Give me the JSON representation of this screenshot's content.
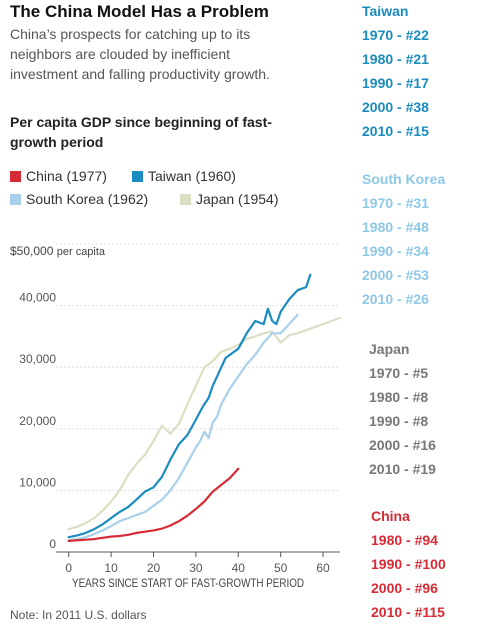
{
  "header": {
    "title": "The China Model Has a Problem",
    "subtitle_lines": [
      "China’s prospects for catching up to its",
      "neighbors are clouded by inefficient",
      "investment and falling productivity growth."
    ]
  },
  "chart_data": {
    "type": "line",
    "title_lines": [
      "Per capita GDP since beginning of fast-",
      "growth period"
    ],
    "xlabel": "YEARS SINCE START OF FAST-GROWTH PERIOD",
    "ylabel_value": "$50,000",
    "ylabel_unit": "per capita",
    "xlim": [
      -3,
      64
    ],
    "ylim": [
      0,
      50000
    ],
    "x_ticks": [
      0,
      10,
      20,
      30,
      40,
      50,
      60
    ],
    "y_tick_labels": [
      "0",
      "10,000",
      "20,000",
      "30,000",
      "40,000"
    ],
    "y_ticks": [
      0,
      10000,
      20000,
      30000,
      40000
    ],
    "grid": true,
    "legend": {
      "placement": "top-left"
    },
    "series": [
      {
        "name": "China (1977)",
        "color": "#d62b34",
        "x": [
          0,
          2,
          4,
          6,
          8,
          10,
          12,
          14,
          16,
          18,
          20,
          22,
          24,
          26,
          28,
          30,
          32,
          34,
          36,
          38,
          40
        ],
        "y": [
          1800,
          1900,
          2000,
          2100,
          2300,
          2500,
          2600,
          2800,
          3100,
          3300,
          3500,
          3800,
          4300,
          5000,
          5900,
          7000,
          8200,
          9800,
          10900,
          12000,
          13500
        ]
      },
      {
        "name": "Taiwan (1960)",
        "color": "#1a8cc0",
        "x": [
          0,
          2,
          4,
          6,
          8,
          10,
          12,
          14,
          16,
          18,
          20,
          22,
          24,
          26,
          28,
          30,
          31,
          32,
          33,
          34,
          35,
          36,
          37,
          38,
          40,
          42,
          44,
          46,
          47,
          48,
          49,
          50,
          52,
          54,
          56,
          57
        ],
        "y": [
          2400,
          2700,
          3100,
          3700,
          4500,
          5500,
          6500,
          7300,
          8500,
          9800,
          10500,
          12200,
          15000,
          17500,
          19000,
          21500,
          22800,
          24000,
          25000,
          27000,
          28500,
          30000,
          31500,
          32000,
          33000,
          35500,
          37500,
          37000,
          39500,
          37500,
          37000,
          39000,
          41000,
          42500,
          43000,
          45000
        ]
      },
      {
        "name": "South Korea (1962)",
        "color": "#a9d0ea",
        "x": [
          0,
          2,
          4,
          6,
          8,
          10,
          12,
          14,
          16,
          18,
          20,
          22,
          24,
          26,
          28,
          30,
          31,
          32,
          33,
          34,
          35,
          36,
          38,
          40,
          42,
          44,
          46,
          48,
          50,
          52,
          54
        ],
        "y": [
          1900,
          2100,
          2400,
          2900,
          3500,
          4200,
          5000,
          5500,
          6000,
          6500,
          7500,
          8500,
          10000,
          12000,
          14500,
          17000,
          18000,
          19500,
          18500,
          21000,
          22000,
          24000,
          26500,
          28500,
          30500,
          32000,
          34000,
          35500,
          35500,
          37000,
          38500
        ]
      },
      {
        "name": "Japan (1954)",
        "color": "#dcdfc4",
        "x": [
          0,
          2,
          4,
          6,
          8,
          10,
          12,
          14,
          16,
          18,
          20,
          22,
          24,
          26,
          28,
          30,
          32,
          34,
          36,
          38,
          40,
          42,
          44,
          46,
          48,
          50,
          52,
          54,
          56,
          58,
          60,
          62,
          64
        ],
        "y": [
          3700,
          4100,
          4700,
          5500,
          6700,
          8200,
          10000,
          12500,
          14300,
          15800,
          18000,
          20500,
          19200,
          20800,
          24000,
          27000,
          30000,
          31000,
          32500,
          33000,
          33600,
          34600,
          35000,
          35500,
          35800,
          34000,
          35200,
          35500,
          36000,
          36500,
          37000,
          37500,
          38000
        ]
      }
    ]
  },
  "rankings": [
    {
      "key": "taiwan",
      "name": "Taiwan",
      "color": "#1a8cc0",
      "rows": [
        "1970 - #22",
        "1980 - #21",
        "1990 - #17",
        "2000 - #38",
        "2010 - #15"
      ]
    },
    {
      "key": "korea",
      "name": "South Korea",
      "color": "#8fc8e6",
      "rows": [
        "1970 - #31",
        "1980 - #48",
        "1990 - #34",
        "2000 - #53",
        "2010 - #26"
      ]
    },
    {
      "key": "japan",
      "name": "Japan",
      "color": "#777777",
      "rows": [
        "1970 - #5",
        "1980 - #8",
        "1990 - #8",
        "2000 - #16",
        "2010 - #19"
      ]
    },
    {
      "key": "china",
      "name": "China",
      "color": "#d62b34",
      "rows": [
        "1980 - #94",
        "1990 - #100",
        "2000 - #96",
        "2010 - #115"
      ]
    }
  ],
  "note": "Note: In 2011 U.S. dollars"
}
